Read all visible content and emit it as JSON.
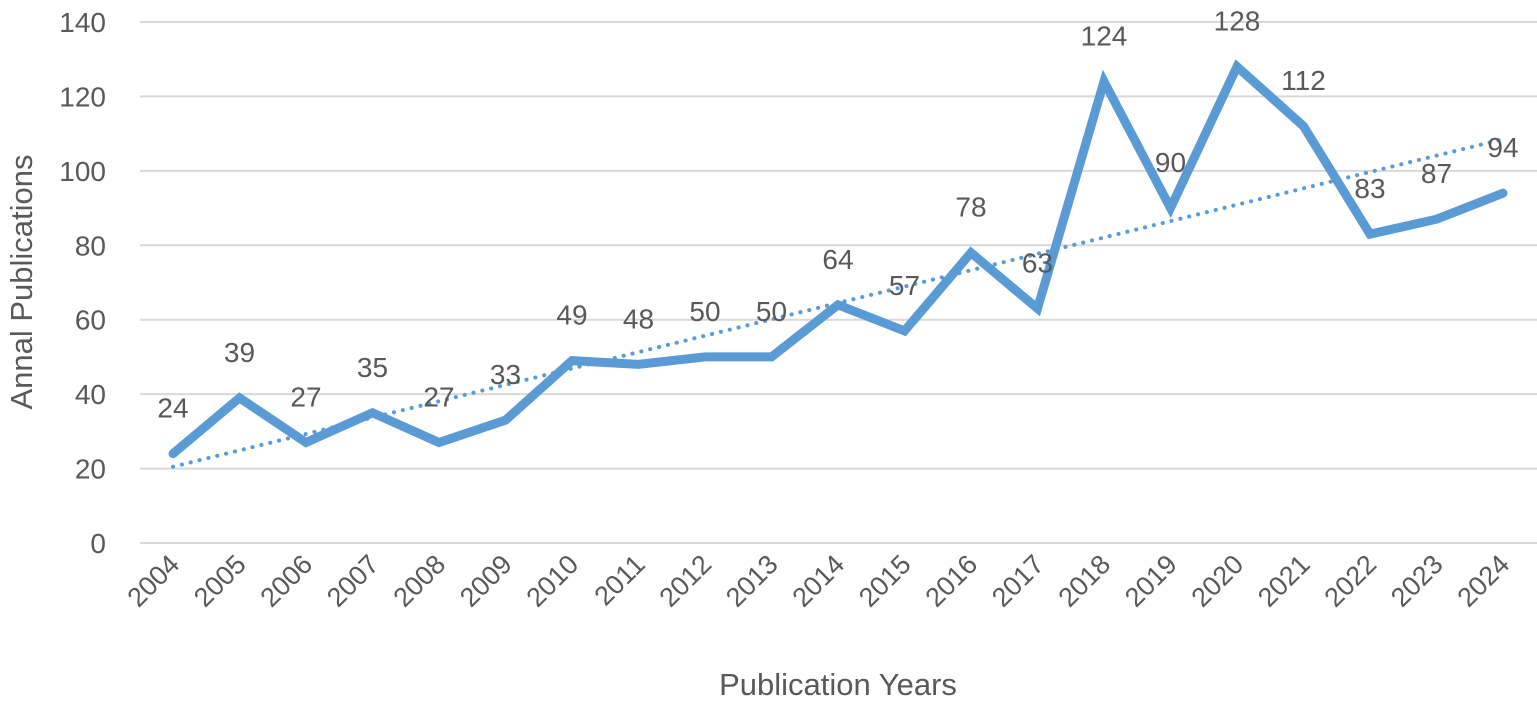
{
  "chart_data": {
    "type": "line",
    "xlabel": "Publication Years",
    "ylabel": "Annal Publications",
    "ylim": [
      0,
      140
    ],
    "yticks": [
      0,
      20,
      40,
      60,
      80,
      100,
      120,
      140
    ],
    "grid": true,
    "categories": [
      "2004",
      "2005",
      "2006",
      "2007",
      "2008",
      "2009",
      "2010",
      "2011",
      "2012",
      "2013",
      "2014",
      "2015",
      "2016",
      "2017",
      "2018",
      "2019",
      "2020",
      "2021",
      "2022",
      "2023",
      "2024"
    ],
    "series": [
      {
        "values": [
          24,
          39,
          27,
          35,
          27,
          33,
          49,
          48,
          50,
          50,
          64,
          57,
          78,
          63,
          124,
          90,
          128,
          112,
          83,
          87,
          94
        ],
        "color": "#5B9BD5",
        "data_labels": true
      }
    ],
    "trendline": {
      "kind": "linear",
      "style": "dotted",
      "color": "#5B9BD5",
      "start": 20.5,
      "end": 108.5
    }
  }
}
